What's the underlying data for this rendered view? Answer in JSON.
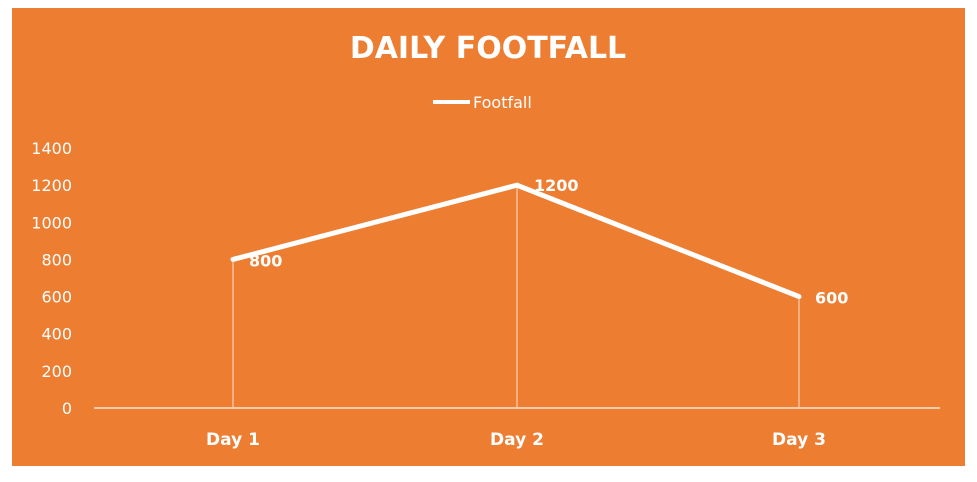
{
  "chart_data": {
    "type": "line",
    "title": "DAILY FOOTFALL",
    "categories": [
      "Day 1",
      "Day 2",
      "Day 3"
    ],
    "series": [
      {
        "name": "Footfall",
        "values": [
          800,
          1200,
          600
        ]
      }
    ],
    "ylim": [
      0,
      1400
    ],
    "yticks": [
      "0",
      "200",
      "400",
      "600",
      "800",
      "1000",
      "1200",
      "1400"
    ],
    "data_labels": [
      "800",
      "1200",
      "600"
    ],
    "legend": "top-center",
    "grid": false,
    "drop_lines": true,
    "colors": {
      "background": "#ED7D31",
      "line": "#FFFFFF",
      "text": "#FFFFFF"
    }
  }
}
